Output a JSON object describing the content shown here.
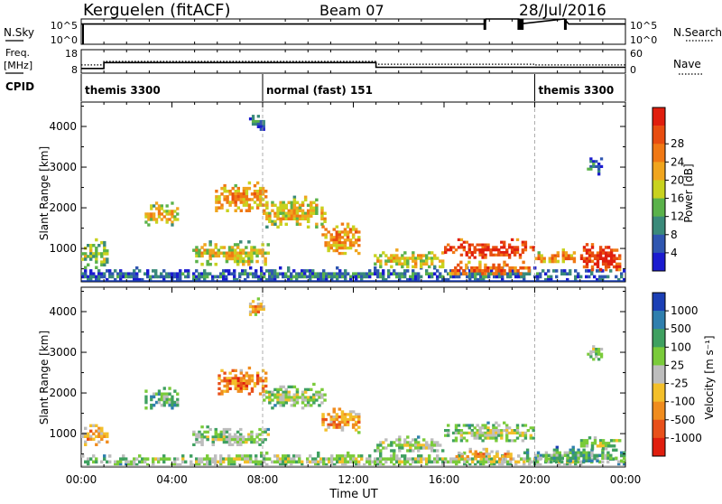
{
  "header": {
    "station": "Kerguelen (fitACF)",
    "beam": "Beam 07",
    "date": "28/Jul/2016"
  },
  "colors": {
    "power_scale": [
      "#1b1bcf",
      "#2f56b0",
      "#3a8a7a",
      "#5ab24a",
      "#c8d21e",
      "#f0a51e",
      "#f07814",
      "#e84d10",
      "#e01e0e"
    ],
    "velocity_scale": [
      "#1b3fb5",
      "#2f7fae",
      "#3fa060",
      "#7acb3a",
      "#bdbdbd",
      "#f3bf2a",
      "#f08c1e",
      "#e8501a",
      "#e01e0e"
    ]
  },
  "chart_data": [
    {
      "type": "line",
      "panel": "nsky-nsearch",
      "left_label": "N.Sky",
      "right_label": "N.Search",
      "left_ticks": [
        "10^5",
        "10^0"
      ],
      "right_ticks": [
        "10^5",
        "10^0"
      ],
      "x": [
        0,
        17.8,
        17.85,
        19.3,
        19.5,
        21.3,
        21.5,
        24
      ],
      "values": [
        4.0,
        4.0,
        5,
        5,
        4.1,
        5,
        4.0,
        4.0
      ],
      "spikes_at_hours": [
        17.8,
        19.3,
        19.45,
        21.35
      ],
      "ylim": [
        0,
        5
      ]
    },
    {
      "type": "line",
      "panel": "freq-nave",
      "left_label_line1": "Freq.",
      "left_label_line2": "[MHz]",
      "right_label": "Nave",
      "left_ticks": [
        {
          "label": "18",
          "value": 18
        },
        {
          "label": "8",
          "value": 8
        }
      ],
      "right_ticks": [
        {
          "label": "60",
          "value": 60
        },
        {
          "label": "0",
          "value": 0
        }
      ],
      "series": [
        {
          "style": "solid",
          "x": [
            0,
            1,
            1,
            13,
            13,
            24
          ],
          "values": [
            10,
            10,
            12.5,
            12.5,
            10.5,
            10.5
          ]
        },
        {
          "style": "dotted",
          "x": [
            0,
            1,
            1,
            13,
            13,
            20,
            20,
            24
          ],
          "values": [
            11.5,
            11.5,
            13.0,
            13.0,
            11.8,
            11.8,
            11.5,
            11.5
          ]
        }
      ],
      "ylim": [
        8,
        18
      ]
    },
    {
      "type": "table",
      "panel": "cpid",
      "label": "CPID",
      "segments": [
        {
          "start": 0,
          "end": 8,
          "text": "themis 3300"
        },
        {
          "start": 8,
          "end": 20,
          "text": "normal (fast) 151"
        },
        {
          "start": 20,
          "end": 24,
          "text": "themis 3300"
        }
      ]
    },
    {
      "type": "heatmap",
      "panel": "power",
      "ylabel": "Slant Range [km]",
      "colorbar_label": "Power [dB]",
      "colorbar_ticks": [
        "4",
        "8",
        "12",
        "16",
        "20",
        "24",
        "28"
      ],
      "ylim": [
        180,
        4600
      ],
      "yticks": [
        1000,
        2000,
        3000,
        4000
      ],
      "xlim": [
        0,
        24
      ],
      "regions": [
        {
          "t0": 0,
          "t1": 1.2,
          "r0": 500,
          "r1": 1250,
          "level": 4
        },
        {
          "t0": 0,
          "t1": 24,
          "r0": 200,
          "r1": 560,
          "level": 2
        },
        {
          "t0": 2.8,
          "t1": 4.3,
          "r0": 1550,
          "r1": 2150,
          "level": 5
        },
        {
          "t0": 4.9,
          "t1": 8.3,
          "r0": 580,
          "r1": 1200,
          "level": 5
        },
        {
          "t0": 5.9,
          "t1": 8.2,
          "r0": 1900,
          "r1": 2650,
          "level": 6
        },
        {
          "t0": 8.0,
          "t1": 10.8,
          "r0": 1500,
          "r1": 2300,
          "level": 5
        },
        {
          "t0": 10.6,
          "t1": 12.3,
          "r0": 850,
          "r1": 1700,
          "level": 6
        },
        {
          "t0": 12.9,
          "t1": 16.0,
          "r0": 520,
          "r1": 1000,
          "level": 5
        },
        {
          "t0": 16.0,
          "t1": 20.0,
          "r0": 750,
          "r1": 1250,
          "level": 8
        },
        {
          "t0": 16.2,
          "t1": 19.8,
          "r0": 350,
          "r1": 700,
          "level": 7
        },
        {
          "t0": 20.0,
          "t1": 21.8,
          "r0": 650,
          "r1": 1000,
          "level": 6
        },
        {
          "t0": 22.0,
          "t1": 23.8,
          "r0": 450,
          "r1": 1200,
          "level": 8
        },
        {
          "t0": 7.4,
          "t1": 8.1,
          "r0": 3900,
          "r1": 4350,
          "level": 2
        },
        {
          "t0": 22.3,
          "t1": 23.0,
          "r0": 2800,
          "r1": 3300,
          "level": 2
        }
      ]
    },
    {
      "type": "heatmap",
      "panel": "velocity",
      "ylabel": "Slant Range [km]",
      "xlabel": "Time UT",
      "colorbar_label": "Velocity [m s⁻¹]",
      "colorbar_ticks": [
        "1000",
        "500",
        "100",
        "25",
        "-25",
        "-100",
        "-500",
        "-1000"
      ],
      "ylim": [
        180,
        4600
      ],
      "yticks": [
        1000,
        2000,
        3000,
        4000
      ],
      "xlim": [
        0,
        24
      ],
      "xticks": [
        "00:00",
        "04:00",
        "08:00",
        "12:00",
        "16:00",
        "20:00",
        "00:00"
      ],
      "regions": [
        {
          "t0": 0,
          "t1": 1.2,
          "r0": 700,
          "r1": 1300,
          "level": 6
        },
        {
          "t0": 0,
          "t1": 24,
          "r0": 200,
          "r1": 560,
          "level": 4
        },
        {
          "t0": 2.8,
          "t1": 4.3,
          "r0": 1600,
          "r1": 2150,
          "level": 3
        },
        {
          "t0": 4.9,
          "t1": 8.3,
          "r0": 700,
          "r1": 1200,
          "level": 4
        },
        {
          "t0": 5.9,
          "t1": 8.2,
          "r0": 1950,
          "r1": 2650,
          "level": 7
        },
        {
          "t0": 8.0,
          "t1": 10.8,
          "r0": 1600,
          "r1": 2250,
          "level": 4
        },
        {
          "t0": 10.6,
          "t1": 12.3,
          "r0": 1000,
          "r1": 1700,
          "level": 6
        },
        {
          "t0": 12.9,
          "t1": 16.0,
          "r0": 550,
          "r1": 950,
          "level": 4
        },
        {
          "t0": 16.0,
          "t1": 20.0,
          "r0": 800,
          "r1": 1300,
          "level": 4
        },
        {
          "t0": 16.5,
          "t1": 19.0,
          "r0": 350,
          "r1": 650,
          "level": 6
        },
        {
          "t0": 19.5,
          "t1": 24.0,
          "r0": 300,
          "r1": 700,
          "level": 3
        },
        {
          "t0": 22.0,
          "t1": 23.8,
          "r0": 600,
          "r1": 1000,
          "level": 4
        },
        {
          "t0": 7.4,
          "t1": 8.1,
          "r0": 3900,
          "r1": 4350,
          "level": 6
        },
        {
          "t0": 22.3,
          "t1": 23.0,
          "r0": 2800,
          "r1": 3300,
          "level": 4
        }
      ]
    }
  ]
}
